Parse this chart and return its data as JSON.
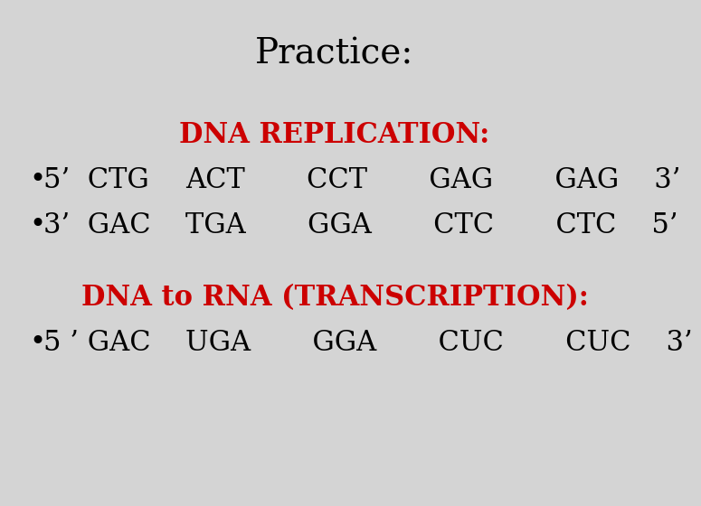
{
  "background_color": "#d4d4d4",
  "title": "Practice:",
  "title_fontsize": 28,
  "title_color": "#000000",
  "title_font": "serif",
  "replication_header": "DNA REPLICATION:",
  "replication_header_color": "#cc0000",
  "replication_header_fontsize": 22,
  "row1_bullet": "•",
  "row1_label": "5’  CTG",
  "row1_seq": "ACT       CCT       GAG       GAG    3’",
  "row2_bullet": "•",
  "row2_label": "3’  GAC",
  "row2_seq": "TGA       GGA       CTC       CTC    5’",
  "transcription_header": "DNA to RNA (TRANSCRIPTION):",
  "transcription_header_color": "#cc0000",
  "transcription_header_fontsize": 22,
  "row3_bullet": "•",
  "row3_label": "5 ’ GAC",
  "row3_seq": "UGA       GGA       CUC       CUC    3’",
  "body_fontsize": 22,
  "body_color": "#000000",
  "body_font": "serif"
}
